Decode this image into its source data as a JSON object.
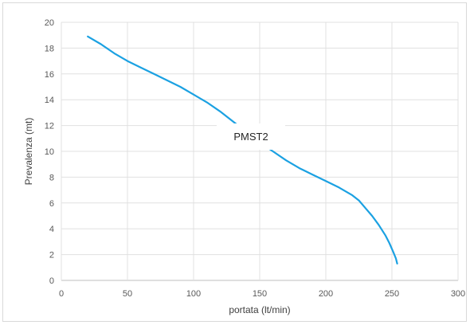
{
  "chart_data": {
    "type": "line",
    "title": "",
    "xlabel": "portata (lt/min)",
    "ylabel": "Prevalenza (mt)",
    "xlim": [
      0,
      300
    ],
    "ylim": [
      0,
      20
    ],
    "x_ticks": [
      0,
      50,
      100,
      150,
      200,
      250,
      300
    ],
    "y_ticks": [
      0,
      2,
      4,
      6,
      8,
      10,
      12,
      14,
      16,
      18,
      20
    ],
    "grid": true,
    "legend": "none",
    "annotation": "PMST2",
    "series": [
      {
        "color": "#1ba1e2",
        "x": [
          20,
          30,
          40,
          50,
          60,
          70,
          80,
          90,
          100,
          110,
          120,
          130,
          140,
          150,
          160,
          170,
          180,
          190,
          200,
          210,
          220,
          225,
          230,
          235,
          240,
          245,
          248,
          251,
          253,
          254
        ],
        "y": [
          18.9,
          18.3,
          17.6,
          17.0,
          16.5,
          16.0,
          15.5,
          15.0,
          14.4,
          13.8,
          13.1,
          12.3,
          11.5,
          10.7,
          10.0,
          9.3,
          8.7,
          8.2,
          7.7,
          7.2,
          6.6,
          6.2,
          5.6,
          5.0,
          4.3,
          3.5,
          2.9,
          2.2,
          1.7,
          1.3
        ]
      }
    ]
  }
}
